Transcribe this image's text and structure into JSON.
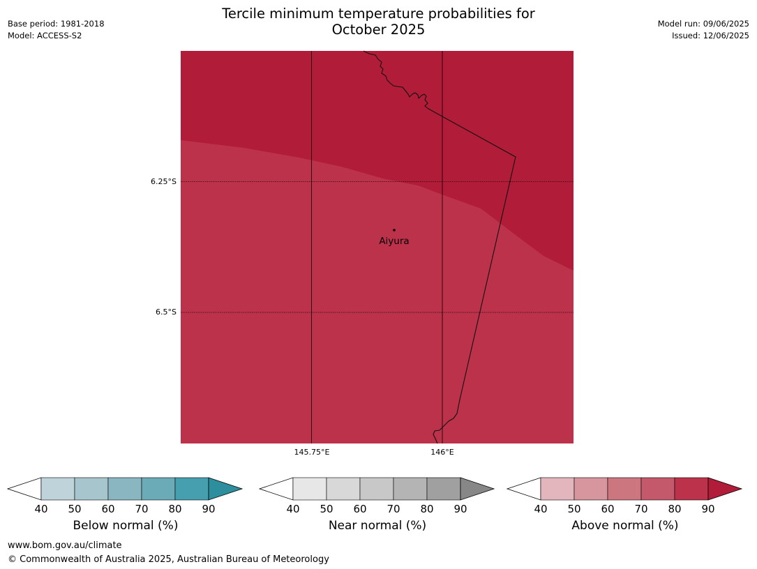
{
  "header": {
    "base_period": "Base period: 1981-2018",
    "model": "Model: ACCESS-S2",
    "title_line1": "Tercile minimum temperature probabilities for",
    "title_line2": "October 2025",
    "model_run": "Model run: 09/06/2025",
    "issued": "Issued: 12/06/2025"
  },
  "map": {
    "latitude_labels": [
      "6.25°S",
      "6.5°S"
    ],
    "longitude_labels": [
      "145.75°E",
      "146°E"
    ],
    "town": "Aiyura",
    "colors": {
      "above_80_90": "#b11c38",
      "above_70_80": "#bc324a"
    }
  },
  "legends": [
    {
      "label": "Below normal (%)",
      "ticks": [
        "40",
        "50",
        "60",
        "70",
        "80",
        "90"
      ],
      "colors": [
        "#bfd3da",
        "#a7c5cc",
        "#8ab6c2",
        "#6babb8",
        "#459fae",
        "#2d8e9e"
      ]
    },
    {
      "label": "Near normal (%)",
      "ticks": [
        "40",
        "50",
        "60",
        "70",
        "80",
        "90"
      ],
      "colors": [
        "#e7e7e7",
        "#d8d8d8",
        "#c8c8c8",
        "#b4b4b4",
        "#a0a0a0",
        "#878787"
      ]
    },
    {
      "label": "Above normal (%)",
      "ticks": [
        "40",
        "50",
        "60",
        "70",
        "80",
        "90"
      ],
      "colors": [
        "#e2b6bc",
        "#d7969e",
        "#cc777f",
        "#c3596a",
        "#bc324a",
        "#b11c38"
      ]
    }
  ],
  "footer": {
    "url": "www.bom.gov.au/climate",
    "copyright": "© Commonwealth of Australia 2025, Australian Bureau of Meteorology"
  }
}
